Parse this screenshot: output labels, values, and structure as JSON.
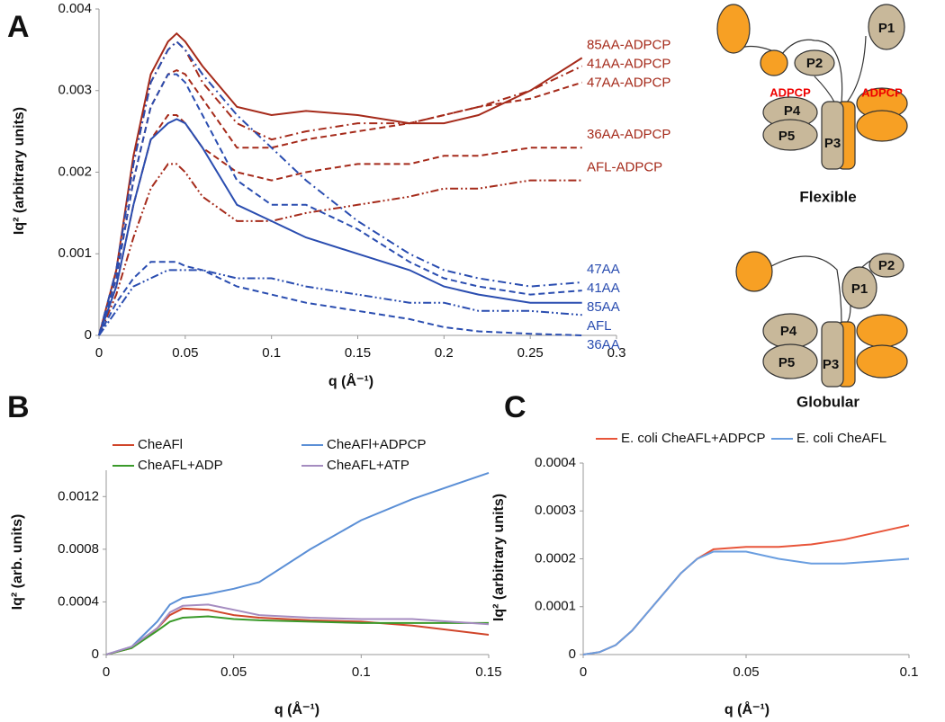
{
  "chart_data": [
    {
      "type": "line",
      "panel": "A",
      "x_label": "q (Å⁻¹)",
      "y_label": "Iq² (arbitrary units)",
      "legend": "end",
      "xlim": [
        0,
        0.3
      ],
      "xticks": [
        0,
        0.05,
        0.1,
        0.15,
        0.2,
        0.25,
        0.3
      ],
      "ylim": [
        0,
        0.004
      ],
      "yticks": [
        0,
        0.001,
        0.002,
        0.003,
        0.004
      ],
      "x": [
        0,
        0.01,
        0.02,
        0.03,
        0.04,
        0.045,
        0.05,
        0.06,
        0.08,
        0.1,
        0.12,
        0.15,
        0.18,
        0.2,
        0.22,
        0.25,
        0.28
      ],
      "series": [
        {
          "name": "85AA-ADPCP",
          "color": "#a52a1a",
          "dash": "solid",
          "values": [
            0,
            0.0008,
            0.0022,
            0.0032,
            0.0036,
            0.0037,
            0.0036,
            0.0033,
            0.0028,
            0.0027,
            0.00275,
            0.0027,
            0.0026,
            0.0026,
            0.0027,
            0.003,
            0.0034
          ]
        },
        {
          "name": "41AA-ADPCP",
          "color": "#a52a1a",
          "dash": "dashdot",
          "values": [
            0,
            0.0008,
            0.0021,
            0.0031,
            0.0035,
            0.0036,
            0.0035,
            0.0031,
            0.0026,
            0.0024,
            0.0025,
            0.0026,
            0.0026,
            0.0027,
            0.0028,
            0.003,
            0.0033
          ]
        },
        {
          "name": "47AA-ADPCP",
          "color": "#a52a1a",
          "dash": "dash",
          "values": [
            0,
            0.0007,
            0.0019,
            0.0028,
            0.0032,
            0.00325,
            0.0032,
            0.0029,
            0.0023,
            0.0023,
            0.0024,
            0.0025,
            0.0026,
            0.0027,
            0.0028,
            0.0029,
            0.0031
          ]
        },
        {
          "name": "36AA-ADPCP",
          "color": "#a52a1a",
          "dash": "dash",
          "values": [
            0,
            0.0006,
            0.0016,
            0.0024,
            0.0027,
            0.0027,
            0.0026,
            0.0023,
            0.002,
            0.0019,
            0.002,
            0.0021,
            0.0021,
            0.0022,
            0.0022,
            0.0023,
            0.0023
          ]
        },
        {
          "name": "AFL-ADPCP",
          "color": "#a52a1a",
          "dash": "dashdotdot",
          "values": [
            0,
            0.0005,
            0.0012,
            0.0018,
            0.0021,
            0.0021,
            0.002,
            0.0017,
            0.0014,
            0.0014,
            0.0015,
            0.0016,
            0.0017,
            0.0018,
            0.0018,
            0.0019,
            0.0019
          ]
        },
        {
          "name": "47AA",
          "color": "#2a4db0",
          "dash": "dashdot",
          "values": [
            0,
            0.0008,
            0.0021,
            0.0031,
            0.0035,
            0.0036,
            0.0035,
            0.0032,
            0.0027,
            0.0023,
            0.0019,
            0.0014,
            0.001,
            0.0008,
            0.0007,
            0.0006,
            0.00065
          ]
        },
        {
          "name": "41AA",
          "color": "#2a4db0",
          "dash": "dash",
          "values": [
            0,
            0.0007,
            0.0019,
            0.0028,
            0.0032,
            0.0032,
            0.0031,
            0.0027,
            0.0019,
            0.0016,
            0.0016,
            0.0013,
            0.0009,
            0.0007,
            0.0006,
            0.0005,
            0.00055
          ]
        },
        {
          "name": "85AA",
          "color": "#2a4db0",
          "dash": "solid",
          "values": [
            0,
            0.0006,
            0.0016,
            0.0024,
            0.0026,
            0.00265,
            0.0026,
            0.0023,
            0.0016,
            0.0014,
            0.0012,
            0.001,
            0.0008,
            0.0006,
            0.0005,
            0.0004,
            0.0004
          ]
        },
        {
          "name": "AFL",
          "color": "#2a4db0",
          "dash": "dashdotdot",
          "values": [
            0,
            0.0003,
            0.0006,
            0.0007,
            0.0008,
            0.0008,
            0.0008,
            0.0008,
            0.0007,
            0.0007,
            0.0006,
            0.0005,
            0.0004,
            0.0004,
            0.0003,
            0.0003,
            0.00025
          ]
        },
        {
          "name": "36AA",
          "color": "#2a4db0",
          "dash": "dash",
          "values": [
            0,
            0.0004,
            0.0007,
            0.0009,
            0.0009,
            0.0009,
            0.00085,
            0.0008,
            0.0006,
            0.0005,
            0.0004,
            0.0003,
            0.0002,
            0.0001,
            5e-05,
            2e-05,
            0
          ]
        }
      ]
    },
    {
      "type": "line",
      "panel": "B",
      "x_label": "q (Å⁻¹)",
      "y_label": "Iq² (arb. units)",
      "legend": "top",
      "xlim": [
        0,
        0.15
      ],
      "xticks": [
        0,
        0.05,
        0.1,
        0.15
      ],
      "ylim": [
        0,
        0.0014
      ],
      "yticks": [
        0,
        0.0004,
        0.0008,
        0.0012
      ],
      "x": [
        0,
        0.01,
        0.02,
        0.025,
        0.03,
        0.04,
        0.05,
        0.06,
        0.08,
        0.1,
        0.12,
        0.15
      ],
      "series": [
        {
          "name": "CheAFl",
          "color": "#d0452a",
          "dash": "solid",
          "values": [
            0,
            5e-05,
            0.0002,
            0.0003,
            0.00035,
            0.00034,
            0.0003,
            0.00028,
            0.00026,
            0.00025,
            0.00022,
            0.00015
          ]
        },
        {
          "name": "CheAFl+ADPCP",
          "color": "#5b8fd6",
          "dash": "solid",
          "values": [
            0,
            6e-05,
            0.00025,
            0.00038,
            0.00043,
            0.00046,
            0.0005,
            0.00055,
            0.0008,
            0.00102,
            0.00118,
            0.00138
          ]
        },
        {
          "name": "CheAFL+ADP",
          "color": "#3a9a2a",
          "dash": "solid",
          "values": [
            0,
            5e-05,
            0.00018,
            0.00025,
            0.00028,
            0.00029,
            0.00027,
            0.00026,
            0.00025,
            0.00024,
            0.00024,
            0.00024
          ]
        },
        {
          "name": "CheAFL+ATP",
          "color": "#a58cc0",
          "dash": "solid",
          "values": [
            0,
            6e-05,
            0.0002,
            0.00032,
            0.00037,
            0.00038,
            0.00034,
            0.0003,
            0.00028,
            0.00027,
            0.00027,
            0.00023
          ]
        }
      ]
    },
    {
      "type": "line",
      "panel": "C",
      "x_label": "q (Å⁻¹)",
      "y_label": "Iq² (arbitrary units)",
      "legend": "top",
      "xlim": [
        0,
        0.1
      ],
      "xticks": [
        0,
        0.05,
        0.1
      ],
      "ylim": [
        0,
        0.0004
      ],
      "yticks": [
        0,
        0.0001,
        0.0002,
        0.0003,
        0.0004
      ],
      "x": [
        0,
        0.005,
        0.01,
        0.015,
        0.02,
        0.025,
        0.03,
        0.035,
        0.04,
        0.05,
        0.06,
        0.07,
        0.08,
        0.09,
        0.1
      ],
      "series": [
        {
          "name": "E. coli CheAFL+ADPCP",
          "color": "#e8553a",
          "dash": "solid",
          "values": [
            0,
            5e-06,
            2e-05,
            5e-05,
            9e-05,
            0.00013,
            0.00017,
            0.0002,
            0.00022,
            0.000225,
            0.000225,
            0.00023,
            0.00024,
            0.000255,
            0.00027
          ]
        },
        {
          "name": "E. coli CheAFL",
          "color": "#6a9ee0",
          "dash": "solid",
          "values": [
            0,
            5e-06,
            2e-05,
            5e-05,
            9e-05,
            0.00013,
            0.00017,
            0.0002,
            0.000215,
            0.000215,
            0.0002,
            0.00019,
            0.00019,
            0.000195,
            0.0002
          ]
        }
      ]
    }
  ],
  "diagrams": [
    {
      "title": "Flexible",
      "labels": [
        "P1",
        "P2",
        "ADPCP",
        "ADPCP",
        "P4",
        "P5",
        "P3"
      ]
    },
    {
      "title": "Globular",
      "labels": [
        "P2",
        "P1",
        "P4",
        "P5",
        "P3"
      ]
    }
  ]
}
